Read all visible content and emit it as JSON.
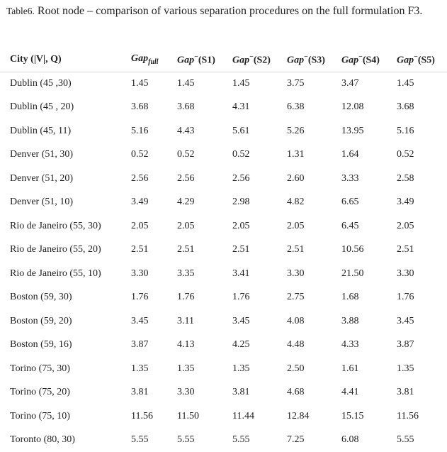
{
  "caption": {
    "label": "Table6.",
    "text": " Root node – comparison of various separation procedures on the full formulation F3."
  },
  "header": {
    "city": "City (|V|, Q)",
    "gap_full_main": "Gap",
    "gap_full_sub": "full",
    "gap_prefix": "Gap",
    "gap_sup": "−",
    "s1": "(S1)",
    "s2": "(S2)",
    "s3": "(S3)",
    "s4": "(S4)",
    "s5": "(S5)"
  },
  "rows": [
    [
      "Dublin (45 ,30)",
      "1.45",
      "1.45",
      "1.45",
      "3.75",
      "3.47",
      "1.45"
    ],
    [
      "Dublin (45 , 20)",
      "3.68",
      "3.68",
      "4.31",
      "6.38",
      "12.08",
      "3.68"
    ],
    [
      "Dublin (45, 11)",
      "5.16",
      "4.43",
      "5.61",
      "5.26",
      "13.95",
      "5.16"
    ],
    [
      "Denver (51, 30)",
      "0.52",
      "0.52",
      "0.52",
      "1.31",
      "1.64",
      "0.52"
    ],
    [
      "Denver (51, 20)",
      "2.56",
      "2.56",
      "2.56",
      "2.60",
      "3.33",
      "2.58"
    ],
    [
      "Denver (51, 10)",
      "3.49",
      "4.29",
      "2.98",
      "4.82",
      "6.65",
      "3.49"
    ],
    [
      "Rio de Janeiro (55, 30)",
      "2.05",
      "2.05",
      "2.05",
      "2.05",
      "6.45",
      "2.05"
    ],
    [
      "Rio de Janeiro (55, 20)",
      "2.51",
      "2.51",
      "2.51",
      "2.51",
      "10.56",
      "2.51"
    ],
    [
      "Rio de Janeiro (55, 10)",
      "3.30",
      "3.35",
      "3.41",
      "3.30",
      "21.50",
      "3.30"
    ],
    [
      "Boston (59, 30)",
      "1.76",
      "1.76",
      "1.76",
      "2.75",
      "1.68",
      "1.76"
    ],
    [
      "Boston (59, 20)",
      "3.45",
      "3.11",
      "3.45",
      "4.08",
      "3.88",
      "3.45"
    ],
    [
      "Boston (59, 16)",
      "3.87",
      "4.13",
      "4.25",
      "4.48",
      "4.33",
      "3.87"
    ],
    [
      "Torino (75, 30)",
      "1.35",
      "1.35",
      "1.35",
      "2.50",
      "1.61",
      "1.35"
    ],
    [
      "Torino (75, 20)",
      "3.81",
      "3.30",
      "3.81",
      "4.68",
      "4.41",
      "3.81"
    ],
    [
      "Torino (75, 10)",
      "11.56",
      "11.50",
      "11.44",
      "12.84",
      "15.15",
      "11.56"
    ],
    [
      "Toronto (80, 30)",
      "5.55",
      "5.55",
      "5.55",
      "7.25",
      "6.08",
      "5.55"
    ]
  ]
}
